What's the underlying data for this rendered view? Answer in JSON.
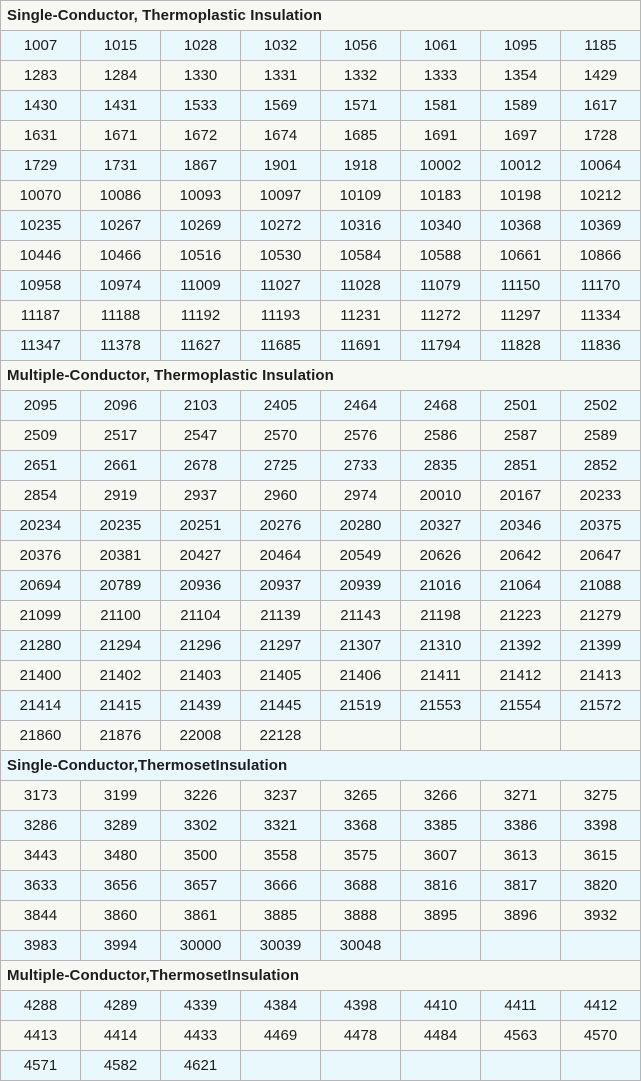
{
  "table": {
    "columns": 8,
    "colors": {
      "stripe_offwhite": "#f8f8f2",
      "stripe_blue": "#e9f8fc",
      "border": "#b6b6b6",
      "text": "#1c1c1c"
    },
    "sections": [
      {
        "title": "Single-Conductor, Thermoplastic Insulation",
        "rows": [
          [
            "1007",
            "1015",
            "1028",
            "1032",
            "1056",
            "1061",
            "1095",
            "1185"
          ],
          [
            "1283",
            "1284",
            "1330",
            "1331",
            "1332",
            "1333",
            "1354",
            "1429"
          ],
          [
            "1430",
            "1431",
            "1533",
            "1569",
            "1571",
            "1581",
            "1589",
            "1617"
          ],
          [
            "1631",
            "1671",
            "1672",
            "1674",
            "1685",
            "1691",
            "1697",
            "1728"
          ],
          [
            "1729",
            "1731",
            "1867",
            "1901",
            "1918",
            "10002",
            "10012",
            "10064"
          ],
          [
            "10070",
            "10086",
            "10093",
            "10097",
            "10109",
            "10183",
            "10198",
            "10212"
          ],
          [
            "10235",
            "10267",
            "10269",
            "10272",
            "10316",
            "10340",
            "10368",
            "10369"
          ],
          [
            "10446",
            "10466",
            "10516",
            "10530",
            "10584",
            "10588",
            "10661",
            "10866"
          ],
          [
            "10958",
            "10974",
            "11009",
            "11027",
            "11028",
            "11079",
            "11150",
            "11170"
          ],
          [
            "11187",
            "11188",
            "11192",
            "11193",
            "11231",
            "11272",
            "11297",
            "11334"
          ],
          [
            "11347",
            "11378",
            "11627",
            "11685",
            "11691",
            "11794",
            "11828",
            "11836"
          ]
        ]
      },
      {
        "title": "Multiple-Conductor, Thermoplastic Insulation",
        "rows": [
          [
            "2095",
            "2096",
            "2103",
            "2405",
            "2464",
            "2468",
            "2501",
            "2502"
          ],
          [
            "2509",
            "2517",
            "2547",
            "2570",
            "2576",
            "2586",
            "2587",
            "2589"
          ],
          [
            "2651",
            "2661",
            "2678",
            "2725",
            "2733",
            "2835",
            "2851",
            "2852"
          ],
          [
            "2854",
            "2919",
            "2937",
            "2960",
            "2974",
            "20010",
            "20167",
            "20233"
          ],
          [
            "20234",
            "20235",
            "20251",
            "20276",
            "20280",
            "20327",
            "20346",
            "20375"
          ],
          [
            "20376",
            "20381",
            "20427",
            "20464",
            "20549",
            "20626",
            "20642",
            "20647"
          ],
          [
            "20694",
            "20789",
            "20936",
            "20937",
            "20939",
            "21016",
            "21064",
            "21088"
          ],
          [
            "21099",
            "21100",
            "21104",
            "21139",
            "21143",
            "21198",
            "21223",
            "21279"
          ],
          [
            "21280",
            "21294",
            "21296",
            "21297",
            "21307",
            "21310",
            "21392",
            "21399"
          ],
          [
            "21400",
            "21402",
            "21403",
            "21405",
            "21406",
            "21411",
            "21412",
            "21413"
          ],
          [
            "21414",
            "21415",
            "21439",
            "21445",
            "21519",
            "21553",
            "21554",
            "21572"
          ],
          [
            "21860",
            "21876",
            "22008",
            "22128",
            "",
            "",
            "",
            ""
          ]
        ]
      },
      {
        "title": "Single-Conductor,ThermosetInsulation",
        "rows": [
          [
            "3173",
            "3199",
            "3226",
            "3237",
            "3265",
            "3266",
            "3271",
            "3275"
          ],
          [
            "3286",
            "3289",
            "3302",
            "3321",
            "3368",
            "3385",
            "3386",
            "3398"
          ],
          [
            "3443",
            "3480",
            "3500",
            "3558",
            "3575",
            "3607",
            "3613",
            "3615"
          ],
          [
            "3633",
            "3656",
            "3657",
            "3666",
            "3688",
            "3816",
            "3817",
            "3820"
          ],
          [
            "3844",
            "3860",
            "3861",
            "3885",
            "3888",
            "3895",
            "3896",
            "3932"
          ],
          [
            "3983",
            "3994",
            "30000",
            "30039",
            "30048",
            "",
            "",
            ""
          ]
        ]
      },
      {
        "title": "Multiple-Conductor,ThermosetInsulation",
        "rows": [
          [
            "4288",
            "4289",
            "4339",
            "4384",
            "4398",
            "4410",
            "4411",
            "4412"
          ],
          [
            "4413",
            "4414",
            "4433",
            "4469",
            "4478",
            "4484",
            "4563",
            "4570"
          ],
          [
            "4571",
            "4582",
            "4621",
            "",
            "",
            "",
            "",
            ""
          ]
        ]
      }
    ]
  }
}
